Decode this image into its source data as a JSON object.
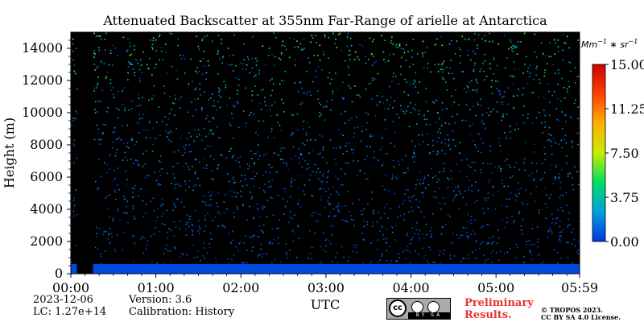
{
  "chart_data": {
    "type": "heatmap",
    "title": "Attenuated Backscatter at 355nm Far-Range of arielle at Antarctica",
    "xlabel": "UTC",
    "ylabel": "Height (m)",
    "x_ticks": [
      "00:00",
      "01:00",
      "02:00",
      "03:00",
      "04:00",
      "05:00",
      "05:59"
    ],
    "x_tick_hours": [
      0,
      1,
      2,
      3,
      4,
      5,
      5.983
    ],
    "xlim_hours": [
      0,
      5.983
    ],
    "y_ticks": [
      0,
      2000,
      4000,
      6000,
      8000,
      10000,
      12000,
      14000
    ],
    "ylim": [
      0,
      15000
    ],
    "colorbar": {
      "unit": "Mm^-1 * sr^-1",
      "ticks": [
        "15.00",
        "11.25",
        "7.50",
        "3.75",
        "0.00"
      ],
      "tick_values": [
        15,
        11.25,
        7.5,
        3.75,
        0
      ],
      "range": [
        0,
        15
      ],
      "colors": [
        "#0033dd",
        "#00a0e0",
        "#00dd60",
        "#c8ee00",
        "#ffb000",
        "#ff4000",
        "#cc0000"
      ]
    },
    "background_color": "#000000",
    "data_gap_hours": [
      [
        0.07,
        0.26
      ]
    ],
    "near_surface_layer": {
      "height_m": [
        0,
        600
      ],
      "value": 0.5
    }
  },
  "meta": {
    "date": "2023-12-06",
    "lc": "LC: 1.27e+14",
    "version": "Version: 3.6",
    "calibration": "Calibration: History"
  },
  "badges": {
    "preliminary": "Preliminary Results.",
    "copyright_line1": "© TROPOS 2023.",
    "copyright_line2": "CC BY SA 4.0 License.",
    "cc_label": "cc",
    "cc_strip": "BY SA"
  }
}
